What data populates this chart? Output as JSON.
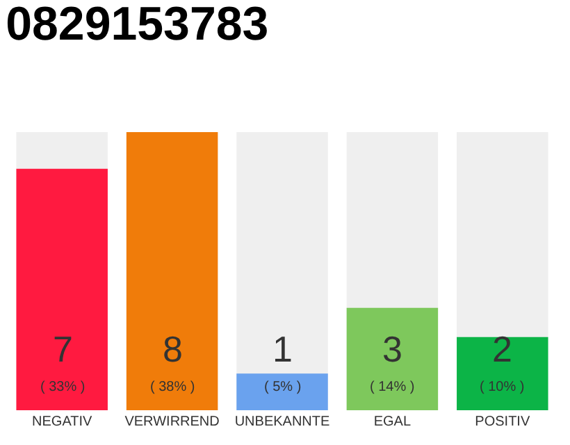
{
  "chart_data": {
    "type": "bar",
    "title": "0829153783",
    "categories": [
      "NEGATIV",
      "VERWIRREND",
      "UNBEKANNTE",
      "EGAL",
      "POSITIV"
    ],
    "values": [
      33,
      38,
      5,
      14,
      10
    ],
    "colors": [
      "#ff1a40",
      "#f07c0a",
      "#6aa2ee",
      "#7ec85c",
      "#0cb447"
    ],
    "value_labels": [
      "( 33% )",
      "( 38% )",
      "( 5% )",
      "( 14% )",
      "( 10% )"
    ],
    "annotations": [
      "7",
      "8",
      "1",
      "3",
      "2"
    ]
  }
}
